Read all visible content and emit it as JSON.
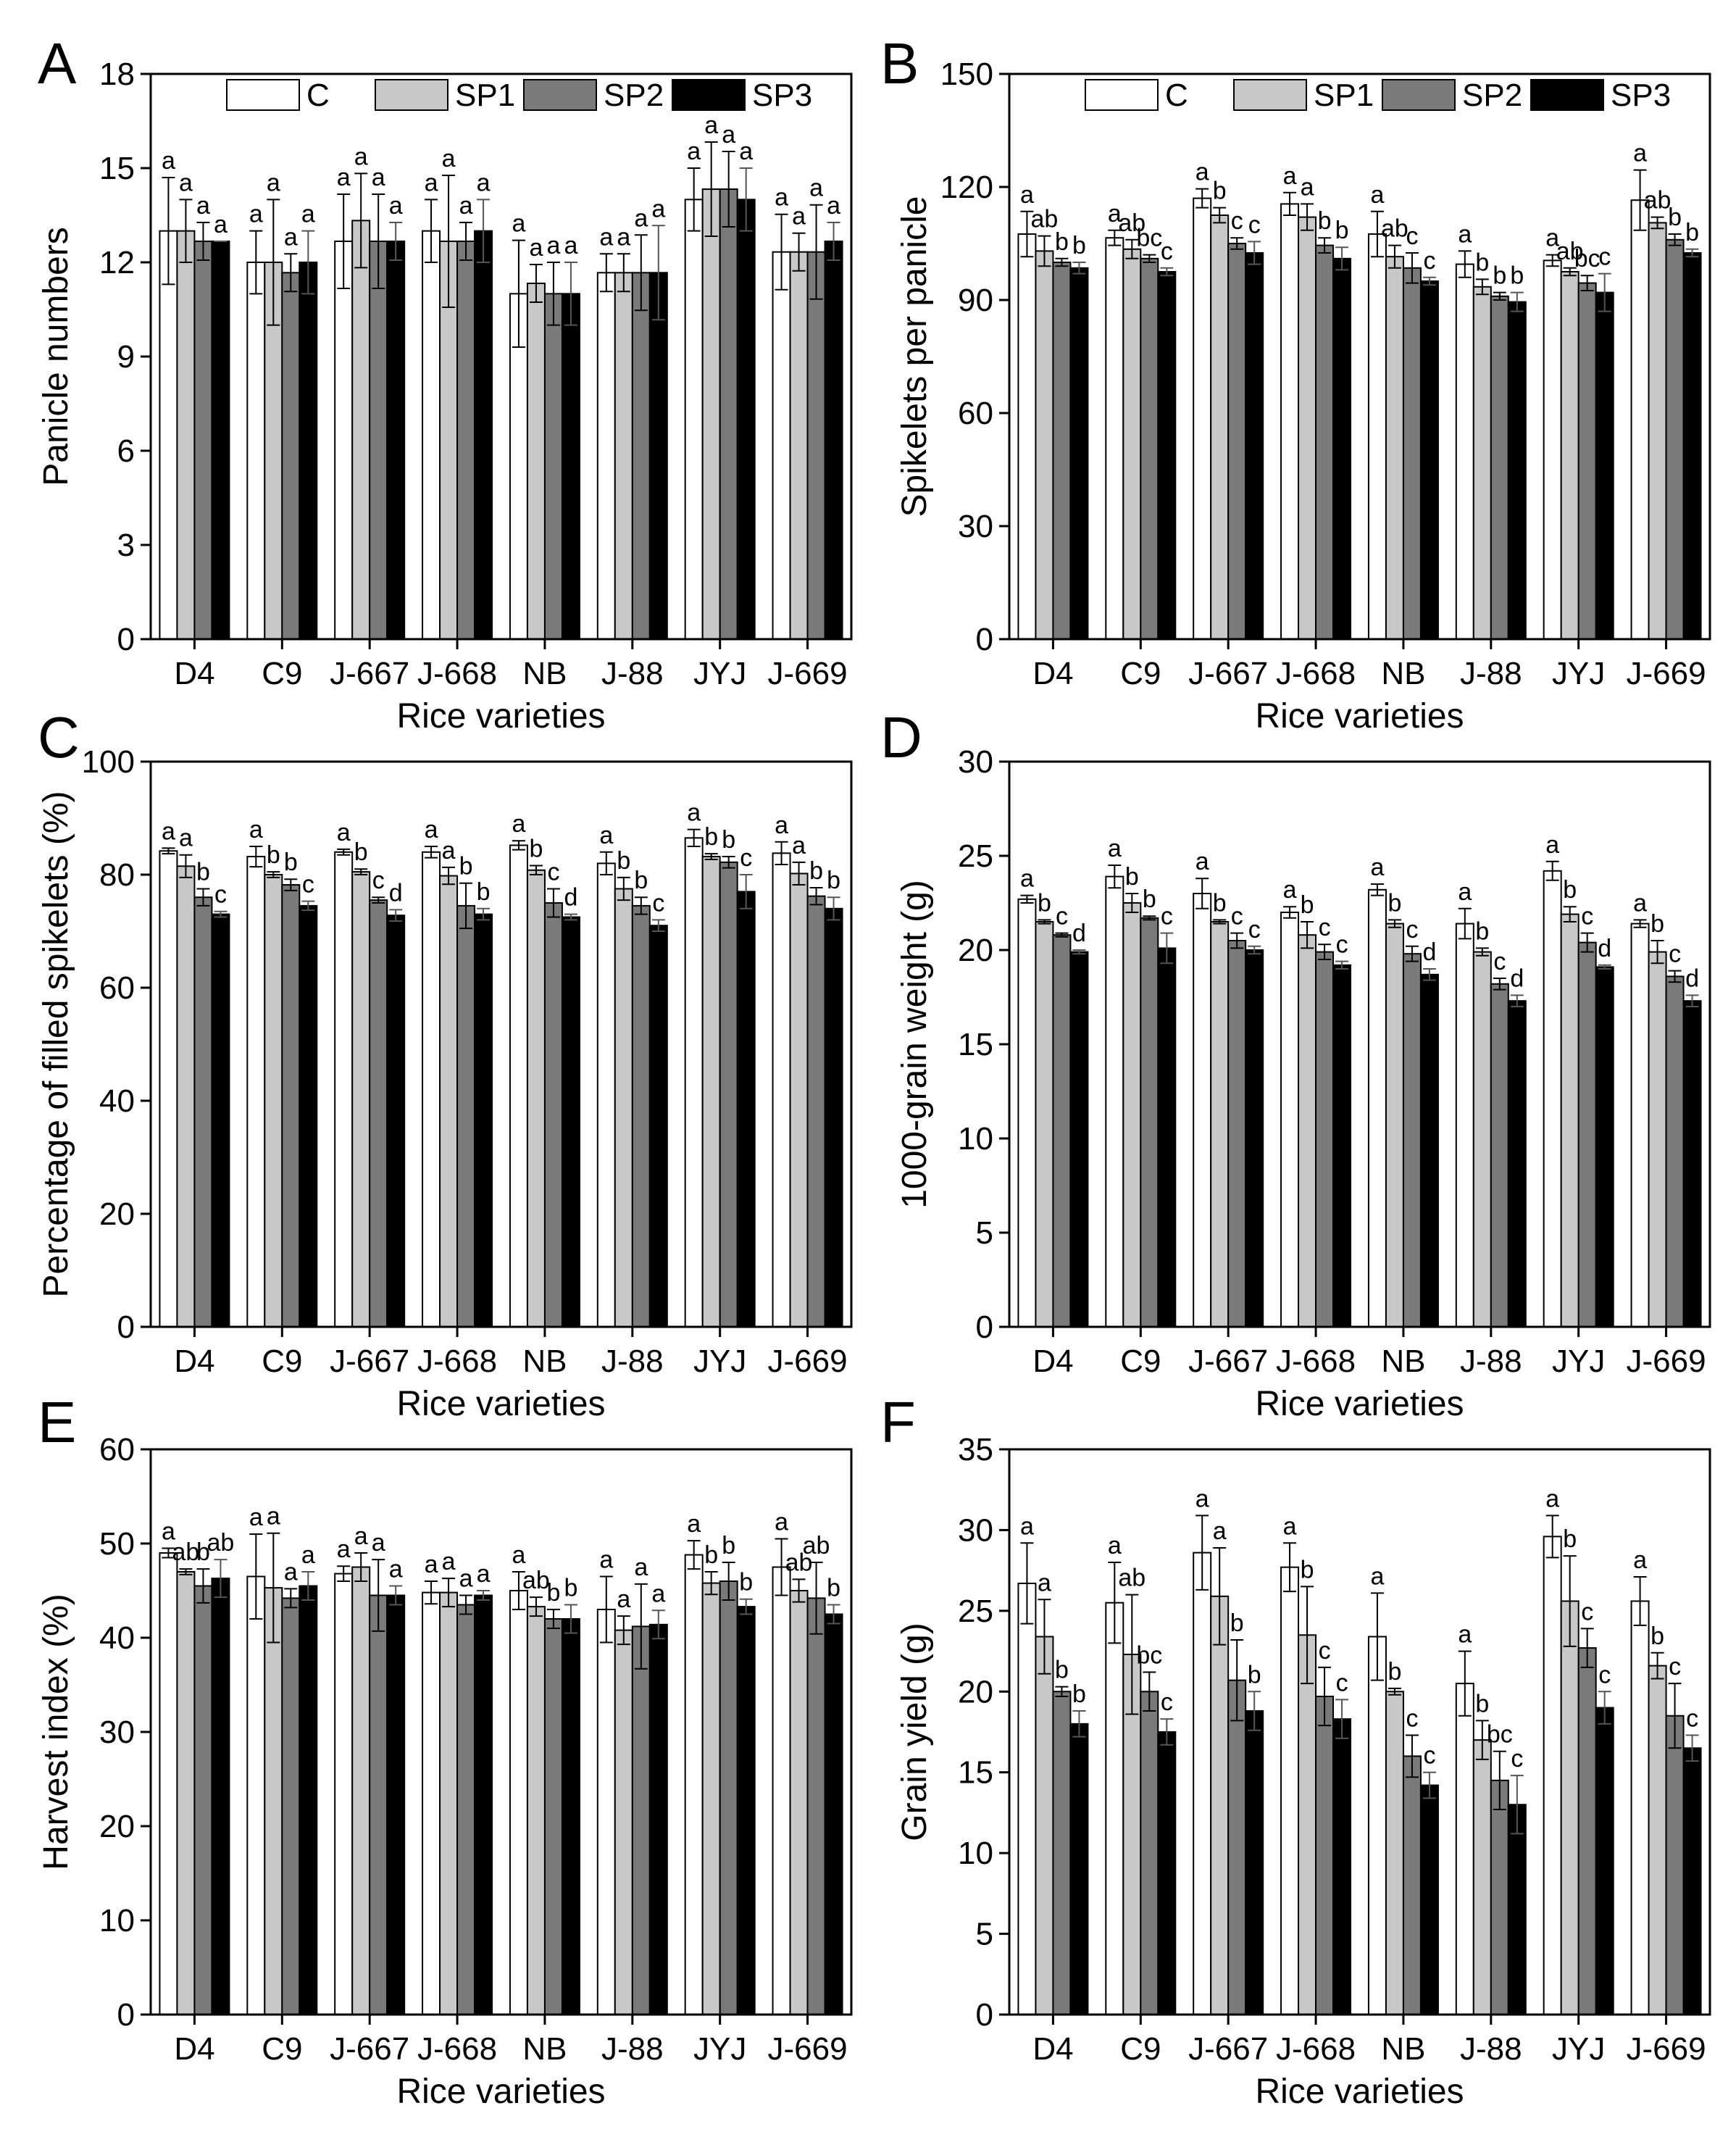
{
  "figure": {
    "xlabel": "Rice varieties",
    "categories": [
      "D4",
      "C9",
      "J-667",
      "J-668",
      "NB",
      "J-88",
      "JYJ",
      "J-669"
    ]
  },
  "legend": {
    "entries": [
      {
        "name": "C",
        "color": "#ffffff"
      },
      {
        "name": "SP1",
        "color": "#c8c8c8"
      },
      {
        "name": "SP2",
        "color": "#7a7a7a"
      },
      {
        "name": "SP3",
        "color": "#000000"
      }
    ]
  },
  "chart_data": [
    {
      "panel": "A",
      "type": "bar",
      "ylabel": "Panicle numbers",
      "ylim": [
        0,
        18
      ],
      "yticks": [
        0,
        3,
        6,
        9,
        12,
        15,
        18
      ],
      "categories": [
        "D4",
        "C9",
        "J-667",
        "J-668",
        "NB",
        "J-88",
        "JYJ",
        "J-669"
      ],
      "series": [
        {
          "name": "C",
          "values": [
            13.0,
            12.0,
            12.67,
            13.0,
            11.0,
            11.67,
            14.0,
            12.33
          ],
          "errors": [
            1.7,
            1.0,
            1.5,
            1.0,
            1.7,
            0.6,
            1.0,
            1.2
          ],
          "sig": [
            "a",
            "a",
            "a",
            "a",
            "a",
            "a",
            "a",
            "a"
          ]
        },
        {
          "name": "SP1",
          "values": [
            13.0,
            12.0,
            13.33,
            12.67,
            11.33,
            11.67,
            14.33,
            12.33
          ],
          "errors": [
            1.0,
            2.0,
            1.5,
            2.1,
            0.6,
            0.6,
            1.5,
            0.6
          ],
          "sig": [
            "a",
            "a",
            "a",
            "a",
            "a",
            "a",
            "a",
            "a"
          ]
        },
        {
          "name": "SP2",
          "values": [
            12.67,
            11.67,
            12.67,
            12.67,
            11.0,
            11.67,
            14.33,
            12.33
          ],
          "errors": [
            0.6,
            0.6,
            1.5,
            0.6,
            1.0,
            1.2,
            1.2,
            1.5
          ],
          "sig": [
            "a",
            "a",
            "a",
            "a",
            "a",
            "a",
            "a",
            "a"
          ]
        },
        {
          "name": "SP3",
          "values": [
            12.67,
            12.0,
            12.67,
            13.0,
            11.0,
            11.67,
            14.0,
            12.67
          ],
          "errors": [
            0.0,
            1.0,
            0.6,
            1.0,
            1.0,
            1.5,
            1.0,
            0.6
          ],
          "sig": [
            "a",
            "a",
            "a",
            "a",
            "a",
            "a",
            "a",
            "a"
          ]
        }
      ]
    },
    {
      "panel": "B",
      "type": "bar",
      "ylabel": "Spikelets per panicle",
      "ylim": [
        0,
        150
      ],
      "yticks": [
        0,
        30,
        60,
        90,
        120,
        150
      ],
      "categories": [
        "D4",
        "C9",
        "J-667",
        "J-668",
        "NB",
        "J-88",
        "JYJ",
        "J-669"
      ],
      "series": [
        {
          "name": "C",
          "values": [
            107.5,
            106.5,
            117.0,
            115.5,
            107.5,
            99.5,
            100.5,
            116.5
          ],
          "errors": [
            6.0,
            2.0,
            2.5,
            3.0,
            6.0,
            3.5,
            1.5,
            8.0
          ],
          "sig": [
            "a",
            "a",
            "a",
            "a",
            "a",
            "a",
            "a",
            "a"
          ]
        },
        {
          "name": "SP1",
          "values": [
            103.0,
            103.5,
            112.5,
            112.0,
            101.5,
            93.5,
            97.5,
            110.5
          ],
          "errors": [
            4.0,
            2.5,
            2.0,
            3.5,
            3.0,
            2.0,
            1.0,
            1.5
          ],
          "sig": [
            "ab",
            "ab",
            "b",
            "a",
            "ab",
            "b",
            "ab",
            "ab"
          ]
        },
        {
          "name": "SP2",
          "values": [
            100.0,
            101.0,
            105.0,
            104.5,
            98.5,
            91.0,
            94.5,
            106.0
          ],
          "errors": [
            1.0,
            1.0,
            1.5,
            2.0,
            4.0,
            1.0,
            2.0,
            1.5
          ],
          "sig": [
            "b",
            "bc",
            "c",
            "b",
            "c",
            "b",
            "bc",
            "b"
          ]
        },
        {
          "name": "SP3",
          "values": [
            98.5,
            97.5,
            102.5,
            101.0,
            95.0,
            89.5,
            92.0,
            102.5
          ],
          "errors": [
            1.5,
            1.0,
            3.0,
            3.0,
            1.0,
            2.5,
            5.0,
            1.0
          ],
          "sig": [
            "b",
            "c",
            "c",
            "b",
            "c",
            "b",
            "c",
            "b"
          ]
        }
      ]
    },
    {
      "panel": "C",
      "type": "bar",
      "ylabel": "Percentage of filled spikelets (%)",
      "ylim": [
        0,
        100
      ],
      "yticks": [
        0,
        20,
        40,
        60,
        80,
        100
      ],
      "categories": [
        "D4",
        "C9",
        "J-667",
        "J-668",
        "NB",
        "J-88",
        "JYJ",
        "J-669"
      ],
      "series": [
        {
          "name": "C",
          "values": [
            84.2,
            83.2,
            84.0,
            84.0,
            85.2,
            82.0,
            86.5,
            83.8
          ],
          "errors": [
            0.5,
            1.8,
            0.5,
            1.0,
            0.8,
            2.0,
            1.5,
            2.0
          ],
          "sig": [
            "a",
            "a",
            "a",
            "a",
            "a",
            "a",
            "a",
            "a"
          ]
        },
        {
          "name": "SP1",
          "values": [
            81.5,
            80.0,
            80.5,
            79.8,
            80.8,
            77.5,
            83.2,
            80.2
          ],
          "errors": [
            2.0,
            0.5,
            0.5,
            1.5,
            0.8,
            2.0,
            0.5,
            2.0
          ],
          "sig": [
            "a",
            "b",
            "b",
            "a",
            "b",
            "b",
            "b",
            "a"
          ]
        },
        {
          "name": "SP2",
          "values": [
            76.0,
            78.2,
            75.5,
            74.5,
            75.0,
            74.5,
            82.2,
            76.2
          ],
          "errors": [
            1.5,
            1.0,
            0.5,
            4.0,
            2.5,
            1.5,
            1.0,
            1.5
          ],
          "sig": [
            "b",
            "b",
            "c",
            "b",
            "c",
            "b",
            "b",
            "b"
          ]
        },
        {
          "name": "SP3",
          "values": [
            73.0,
            74.5,
            72.8,
            73.0,
            72.5,
            71.0,
            77.0,
            74.0
          ],
          "errors": [
            0.5,
            0.8,
            1.0,
            1.0,
            0.5,
            1.0,
            3.0,
            2.0
          ],
          "sig": [
            "c",
            "c",
            "d",
            "b",
            "d",
            "c",
            "c",
            "b"
          ]
        }
      ]
    },
    {
      "panel": "D",
      "type": "bar",
      "ylabel": "1000-grain weight (g)",
      "ylim": [
        0,
        30
      ],
      "yticks": [
        0,
        5,
        10,
        15,
        20,
        25,
        30
      ],
      "categories": [
        "D4",
        "C9",
        "J-667",
        "J-668",
        "NB",
        "J-88",
        "JYJ",
        "J-669"
      ],
      "series": [
        {
          "name": "C",
          "values": [
            22.7,
            23.9,
            23.0,
            22.0,
            23.2,
            21.4,
            24.2,
            21.4
          ],
          "errors": [
            0.2,
            0.6,
            0.8,
            0.3,
            0.3,
            0.8,
            0.5,
            0.2
          ],
          "sig": [
            "a",
            "a",
            "a",
            "a",
            "a",
            "a",
            "a",
            "a"
          ]
        },
        {
          "name": "SP1",
          "values": [
            21.5,
            22.5,
            21.5,
            20.8,
            21.4,
            19.9,
            21.9,
            19.9
          ],
          "errors": [
            0.1,
            0.5,
            0.1,
            0.7,
            0.2,
            0.2,
            0.4,
            0.6
          ],
          "sig": [
            "b",
            "b",
            "b",
            "b",
            "b",
            "b",
            "b",
            "b"
          ]
        },
        {
          "name": "SP2",
          "values": [
            20.8,
            21.7,
            20.5,
            19.9,
            19.8,
            18.2,
            20.4,
            18.6
          ],
          "errors": [
            0.1,
            0.1,
            0.4,
            0.4,
            0.4,
            0.3,
            0.5,
            0.3
          ],
          "sig": [
            "c",
            "b",
            "c",
            "c",
            "c",
            "c",
            "c",
            "c"
          ]
        },
        {
          "name": "SP3",
          "values": [
            19.9,
            20.1,
            20.0,
            19.2,
            18.7,
            17.3,
            19.1,
            17.3
          ],
          "errors": [
            0.1,
            0.8,
            0.2,
            0.2,
            0.3,
            0.3,
            0.1,
            0.3
          ],
          "sig": [
            "d",
            "c",
            "c",
            "c",
            "d",
            "d",
            "d",
            "d"
          ]
        }
      ]
    },
    {
      "panel": "E",
      "type": "bar",
      "ylabel": "Harvest index (%)",
      "ylim": [
        0,
        60
      ],
      "yticks": [
        0,
        10,
        20,
        30,
        40,
        50,
        60
      ],
      "categories": [
        "D4",
        "C9",
        "J-667",
        "J-668",
        "NB",
        "J-88",
        "JYJ",
        "J-669"
      ],
      "series": [
        {
          "name": "C",
          "values": [
            49.0,
            46.5,
            46.8,
            44.8,
            45.0,
            43.0,
            48.8,
            47.5
          ],
          "errors": [
            0.5,
            4.5,
            0.8,
            1.2,
            2.0,
            3.5,
            1.5,
            3.0
          ],
          "sig": [
            "a",
            "a",
            "a",
            "a",
            "a",
            "a",
            "a",
            "a"
          ]
        },
        {
          "name": "SP1",
          "values": [
            47.0,
            45.3,
            47.5,
            44.8,
            43.3,
            40.8,
            45.8,
            45.0
          ],
          "errors": [
            0.3,
            5.8,
            1.5,
            1.5,
            1.0,
            1.5,
            1.2,
            1.2
          ],
          "sig": [
            "ab",
            "a",
            "a",
            "a",
            "ab",
            "a",
            "b",
            "ab"
          ]
        },
        {
          "name": "SP2",
          "values": [
            45.5,
            44.2,
            44.5,
            43.5,
            42.0,
            41.2,
            46.0,
            44.2
          ],
          "errors": [
            1.8,
            1.0,
            3.8,
            1.0,
            1.0,
            4.5,
            2.0,
            3.8
          ],
          "sig": [
            "b",
            "a",
            "a",
            "a",
            "b",
            "a",
            "b",
            "ab"
          ]
        },
        {
          "name": "SP3",
          "values": [
            46.3,
            45.5,
            44.5,
            44.5,
            42.0,
            41.4,
            43.3,
            42.5
          ],
          "errors": [
            2.0,
            1.5,
            1.0,
            0.5,
            1.5,
            1.5,
            0.8,
            1.0
          ],
          "sig": [
            "ab",
            "a",
            "a",
            "a",
            "b",
            "a",
            "b",
            "b"
          ]
        }
      ]
    },
    {
      "panel": "F",
      "type": "bar",
      "ylabel": "Grain yield (g)",
      "ylim": [
        0,
        35
      ],
      "yticks": [
        0,
        5,
        10,
        15,
        20,
        25,
        30,
        35
      ],
      "categories": [
        "D4",
        "C9",
        "J-667",
        "J-668",
        "NB",
        "J-88",
        "JYJ",
        "J-669"
      ],
      "series": [
        {
          "name": "C",
          "values": [
            26.7,
            25.5,
            28.6,
            27.7,
            23.4,
            20.5,
            29.6,
            25.6
          ],
          "errors": [
            2.5,
            2.5,
            2.3,
            1.5,
            2.7,
            2.0,
            1.3,
            1.5
          ],
          "sig": [
            "a",
            "a",
            "a",
            "a",
            "a",
            "a",
            "a",
            "a"
          ]
        },
        {
          "name": "SP1",
          "values": [
            23.4,
            22.3,
            25.9,
            23.5,
            20.0,
            17.0,
            25.6,
            21.6
          ],
          "errors": [
            2.3,
            3.7,
            3.0,
            3.0,
            0.2,
            1.2,
            2.8,
            0.8
          ],
          "sig": [
            "a",
            "ab",
            "a",
            "b",
            "b",
            "b",
            "b",
            "b"
          ]
        },
        {
          "name": "SP2",
          "values": [
            20.0,
            20.0,
            20.7,
            19.7,
            16.0,
            14.5,
            22.7,
            18.5
          ],
          "errors": [
            0.3,
            1.2,
            2.5,
            1.8,
            1.3,
            1.8,
            1.2,
            2.0
          ],
          "sig": [
            "b",
            "bc",
            "b",
            "c",
            "c",
            "bc",
            "c",
            "c"
          ]
        },
        {
          "name": "SP3",
          "values": [
            18.0,
            17.5,
            18.8,
            18.3,
            14.2,
            13.0,
            19.0,
            16.5
          ],
          "errors": [
            0.8,
            0.8,
            1.2,
            1.2,
            0.8,
            1.8,
            1.0,
            0.8
          ],
          "sig": [
            "b",
            "c",
            "b",
            "c",
            "c",
            "c",
            "c",
            "c"
          ]
        }
      ]
    }
  ]
}
